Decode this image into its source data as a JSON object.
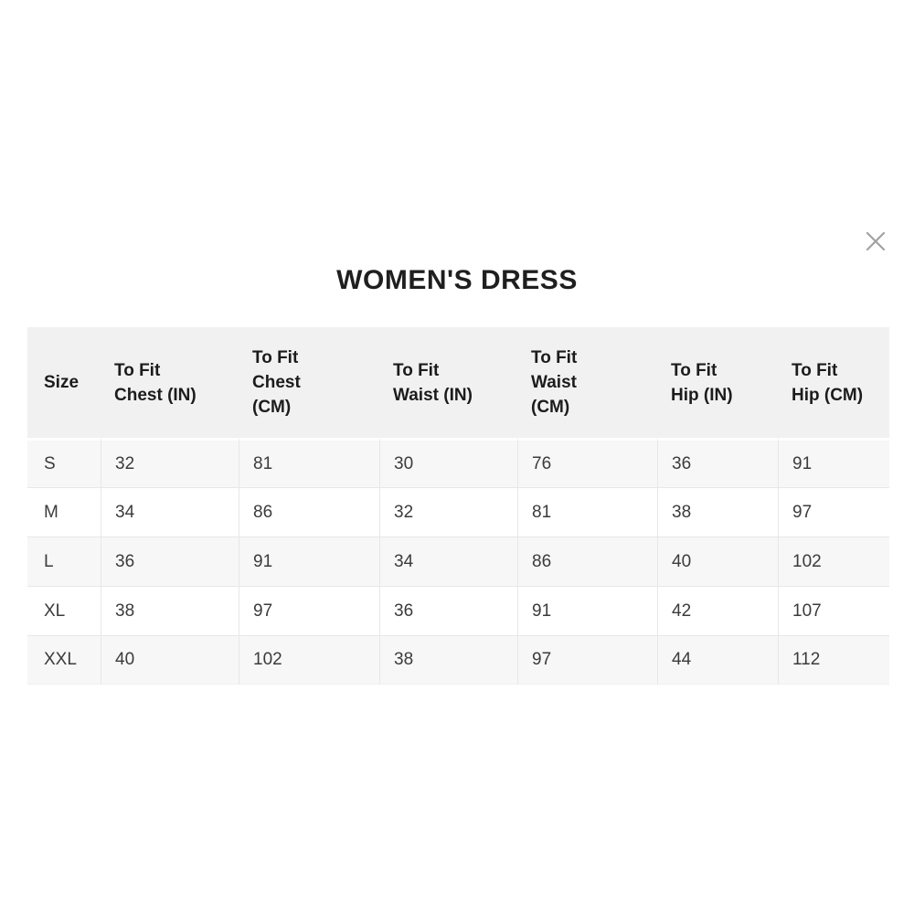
{
  "modal": {
    "title": "WOMEN'S DRESS"
  },
  "icons": {
    "close": "x-cross"
  },
  "size_chart": {
    "columns": [
      {
        "id": "size",
        "label": "Size"
      },
      {
        "id": "chest-in",
        "label": "To Fit\nChest (IN)"
      },
      {
        "id": "chest-cm",
        "label": "To Fit\nChest\n(CM)"
      },
      {
        "id": "waist-in",
        "label": "To Fit\nWaist (IN)"
      },
      {
        "id": "waist-cm",
        "label": "To Fit\nWaist\n(CM)"
      },
      {
        "id": "hip-in",
        "label": "To Fit\nHip (IN)"
      },
      {
        "id": "hip-cm",
        "label": "To Fit\nHip (CM)"
      }
    ],
    "rows": [
      {
        "size": "S",
        "values": [
          "32",
          "81",
          "30",
          "76",
          "36",
          "91"
        ]
      },
      {
        "size": "M",
        "values": [
          "34",
          "86",
          "32",
          "81",
          "38",
          "97"
        ]
      },
      {
        "size": "L",
        "values": [
          "36",
          "91",
          "34",
          "86",
          "40",
          "102"
        ]
      },
      {
        "size": "XL",
        "values": [
          "38",
          "97",
          "36",
          "91",
          "42",
          "107"
        ]
      },
      {
        "size": "XXL",
        "values": [
          "40",
          "102",
          "38",
          "97",
          "44",
          "112"
        ]
      }
    ]
  },
  "colors": {
    "header_bg": "#f1f1f1",
    "stripe_bg": "#f7f7f7",
    "border": "#e7e7e7",
    "title_text": "#1f1f1f",
    "close_icon": "#a2a2a2"
  }
}
